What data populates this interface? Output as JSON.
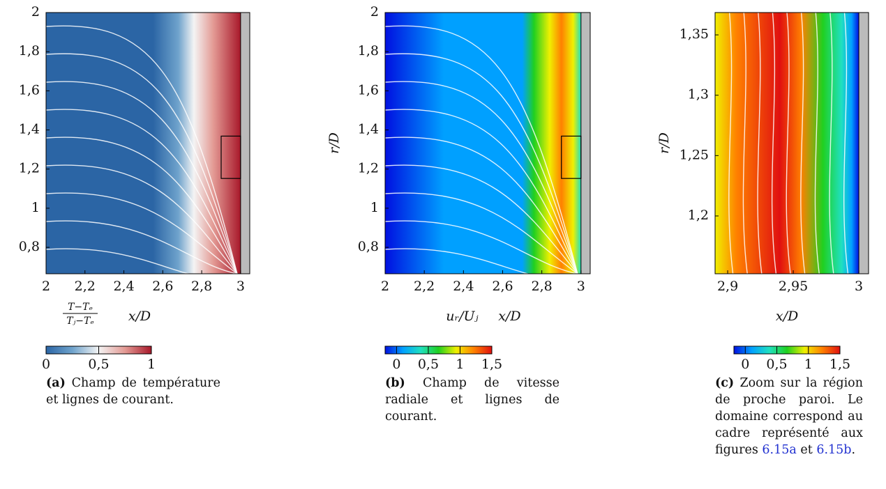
{
  "chart_data": [
    {
      "type": "field",
      "xlabel": "x/D",
      "ylabel": null,
      "xlim": [
        2,
        3.047
      ],
      "ylim": [
        0.665,
        2
      ],
      "xticks": [
        2,
        {
          "value": 2.2,
          "label": "2,2"
        },
        {
          "value": 2.4,
          "label": "2,4"
        },
        {
          "value": 2.6,
          "label": "2,6"
        },
        {
          "value": 2.8,
          "label": "2,8"
        },
        3
      ],
      "yticks": [
        {
          "value": 0.8,
          "label": "0,8"
        },
        1,
        {
          "value": 1.2,
          "label": "1,2"
        },
        {
          "value": 1.4,
          "label": "1,4"
        },
        {
          "value": 1.6,
          "label": "1,6"
        },
        {
          "value": 1.8,
          "label": "1,8"
        },
        2
      ],
      "colorbar": {
        "numerator": "T−Tₑ",
        "denominator": "Tⱼ−Tₑ",
        "lim": [
          0,
          1
        ],
        "ticks": [
          0,
          {
            "value": 0.5,
            "label": "0,5"
          },
          1
        ],
        "colors": [
          "#2b65a5",
          "#6fa3cc",
          "#f4f4f4",
          "#e39a94",
          "#a8182a"
        ]
      },
      "caption": {
        "label": "(a)",
        "text": "Champ de température et lignes de courant."
      }
    },
    {
      "type": "field",
      "xlabel": "x/D",
      "ylabel": "r/D",
      "xlim": [
        2,
        3.047
      ],
      "ylim": [
        0.665,
        2
      ],
      "xticks": [
        2,
        {
          "value": 2.2,
          "label": "2,2"
        },
        {
          "value": 2.4,
          "label": "2,4"
        },
        {
          "value": 2.6,
          "label": "2,6"
        },
        {
          "value": 2.8,
          "label": "2,8"
        },
        3
      ],
      "yticks": [
        {
          "value": 0.8,
          "label": "0,8"
        },
        1,
        {
          "value": 1.2,
          "label": "1,2"
        },
        {
          "value": 1.4,
          "label": "1,4"
        },
        {
          "value": 1.6,
          "label": "1,6"
        },
        {
          "value": 1.8,
          "label": "1,8"
        },
        2
      ],
      "colorbar": {
        "label": "uᵣ/Uⱼ",
        "lim": [
          -0.18,
          1.5
        ],
        "ticks": [
          0,
          {
            "value": 0.5,
            "label": "0,5"
          },
          1,
          {
            "value": 1.5,
            "label": "1,5"
          }
        ],
        "colors": [
          "#0010e0",
          "#00a0ff",
          "#20e0c0",
          "#20d020",
          "#f0f000",
          "#ff8000",
          "#e01010"
        ]
      },
      "caption": {
        "label": "(b)",
        "text": "Champ de vitesse radiale et lignes de courant."
      }
    },
    {
      "type": "field",
      "xlabel": "x/D",
      "ylabel": "r/D",
      "xlim": [
        2.8904,
        3.0074
      ],
      "ylim": [
        1.1521,
        1.3685
      ],
      "xticks": [
        {
          "value": 2.9,
          "label": "2,9"
        },
        {
          "value": 2.95,
          "label": "2,95"
        },
        3
      ],
      "yticks": [
        {
          "value": 1.2,
          "label": "1,2"
        },
        {
          "value": 1.25,
          "label": "1,25"
        },
        {
          "value": 1.3,
          "label": "1,3"
        },
        {
          "value": 1.35,
          "label": "1,35"
        }
      ],
      "colorbar": {
        "lim": [
          -0.18,
          1.5
        ],
        "ticks": [
          0,
          {
            "value": 0.5,
            "label": "0,5"
          },
          1,
          {
            "value": 1.5,
            "label": "1,5"
          }
        ],
        "colors": [
          "#0010e0",
          "#00a0ff",
          "#20e0c0",
          "#20d020",
          "#f0f000",
          "#ff8000",
          "#e01010"
        ]
      },
      "caption": {
        "label": "(c)",
        "text": "Zoom sur la région de proche paroi. Le domaine correspond au cadre re­présenté aux figures ",
        "ref1": "6.15a",
        "mid": " et ",
        "ref2": "6.15b",
        "end": "."
      }
    }
  ]
}
